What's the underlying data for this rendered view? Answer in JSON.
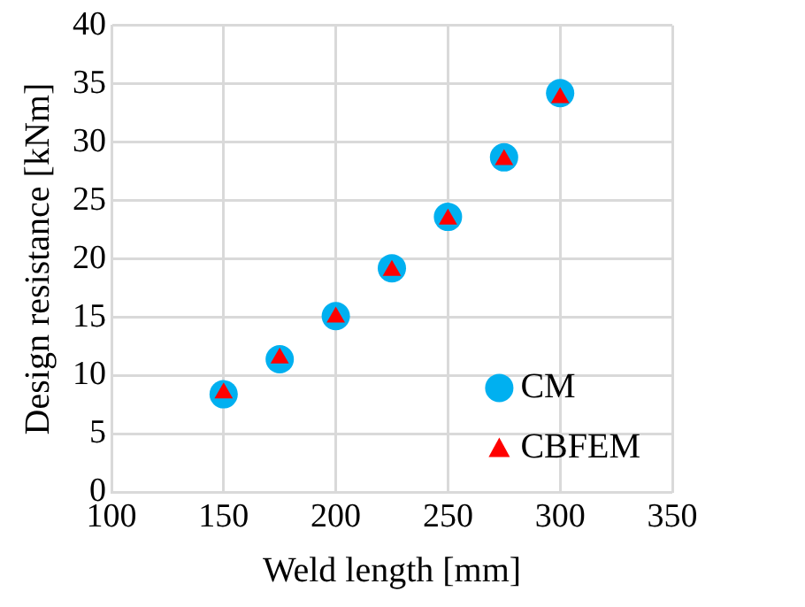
{
  "chart_data": {
    "type": "scatter",
    "xlabel": "Weld length [mm]",
    "ylabel": "Design resistance [kNm]",
    "x": [
      150,
      175,
      200,
      225,
      250,
      275,
      300
    ],
    "series": [
      {
        "name": "CM",
        "color": "#00b0f0",
        "marker": "circle",
        "values": [
          8.4,
          11.4,
          15.1,
          19.2,
          23.6,
          28.7,
          34.2
        ]
      },
      {
        "name": "CBFEM",
        "color": "#ff0000",
        "marker": "triangle",
        "values": [
          8.5,
          11.5,
          15.0,
          19.0,
          23.4,
          28.5,
          33.8
        ]
      }
    ],
    "xlim": [
      100,
      350
    ],
    "xticks": [
      100,
      150,
      200,
      250,
      300,
      350
    ],
    "ylim": [
      0,
      40
    ],
    "yticks": [
      0,
      5,
      10,
      15,
      20,
      25,
      30,
      35,
      40
    ],
    "grid": true,
    "legend": "bottom right"
  }
}
